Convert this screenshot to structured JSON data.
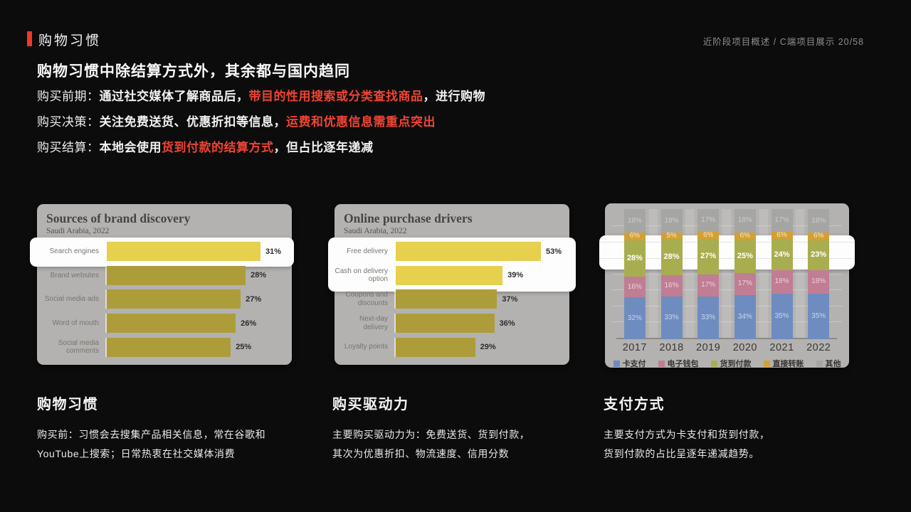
{
  "header": {
    "title": "购物习惯",
    "breadcrumb": "近阶段项目概述  /  C端项目展示  20/58",
    "accent_color": "#ec3a2c",
    "highlight_text_color": "#ef4433"
  },
  "intro": {
    "headline": "购物习惯中除结算方式外，其余都与国内趋同",
    "lines": [
      {
        "label": "购买前期：",
        "pre": "通过社交媒体了解商品后，",
        "highlight": "带目的性用搜索或分类查找商品",
        "post": "，进行购物"
      },
      {
        "label": "购买决策：",
        "pre": "关注免费送货、优惠折扣等信息，",
        "highlight": "运费和优惠信息需重点突出",
        "post": ""
      },
      {
        "label": "购买结算：",
        "pre": "本地会使用",
        "highlight": "货到付款的结算方式",
        "post": "，但占比逐年递减"
      }
    ]
  },
  "chart_data": [
    {
      "type": "bar",
      "orientation": "horizontal",
      "title": "Sources of brand discovery",
      "subtitle": "Saudi Arabia, 2022",
      "categories": [
        "Search engines",
        "Brand websites",
        "Social media ads",
        "Word of mouth",
        "Social media comments"
      ],
      "values": [
        31,
        28,
        27,
        26,
        25
      ],
      "unit": "%",
      "highlighted": [
        "Search engines"
      ],
      "bar_color": "#ac9d3a",
      "highlight_bar_color": "#e6d04e"
    },
    {
      "type": "bar",
      "orientation": "horizontal",
      "title": "Online purchase drivers",
      "subtitle": "Saudi Arabia, 2022",
      "categories": [
        "Free delivery",
        "Cash on delivery option",
        "Coupons and discounts",
        "Next-day delivery",
        "Loyalty points"
      ],
      "values": [
        53,
        39,
        37,
        36,
        29
      ],
      "unit": "%",
      "highlighted": [
        "Free delivery",
        "Cash on delivery option"
      ],
      "bar_color": "#ac9d3a",
      "highlight_bar_color": "#e6d04e"
    },
    {
      "type": "bar",
      "stacked": true,
      "categories": [
        "2017",
        "2018",
        "2019",
        "2020",
        "2021",
        "2022"
      ],
      "series": [
        {
          "name": "卡支付",
          "color": "#6e8cc0",
          "label_color": "#ccd6e8",
          "values": [
            32,
            33,
            33,
            34,
            35,
            35
          ]
        },
        {
          "name": "电子钱包",
          "color": "#c07d94",
          "label_color": "#ecd2dc",
          "values": [
            16,
            16,
            17,
            17,
            18,
            18
          ]
        },
        {
          "name": "货到付款",
          "color": "#a8ae50",
          "label_color": "#ffffff",
          "values": [
            28,
            28,
            27,
            25,
            24,
            23
          ]
        },
        {
          "name": "直接转账",
          "color": "#d3a033",
          "label_color": "#f5e7c4",
          "values": [
            6,
            5,
            6,
            6,
            6,
            6
          ]
        },
        {
          "name": "其他",
          "color": "#a5a5a4",
          "label_color": "#cbcbcb",
          "values": [
            18,
            18,
            17,
            18,
            17,
            18
          ]
        }
      ],
      "highlighted_series": "货到付款",
      "unit": "%",
      "ylim": [
        0,
        100
      ],
      "legend_position": "bottom",
      "grid": true
    }
  ],
  "sections": [
    {
      "title": "购物习惯",
      "body": "购买前：习惯会去搜集产品相关信息，常在谷歌和\nYouTube上搜索；日常热衷在社交媒体消费"
    },
    {
      "title": "购买驱动力",
      "body": "主要购买驱动力为：免费送货、货到付款，\n其次为优惠折扣、物流速度、信用分数"
    },
    {
      "title": "支付方式",
      "body": "主要支付方式为卡支付和货到付款，\n货到付款的占比呈逐年递减趋势。"
    }
  ]
}
